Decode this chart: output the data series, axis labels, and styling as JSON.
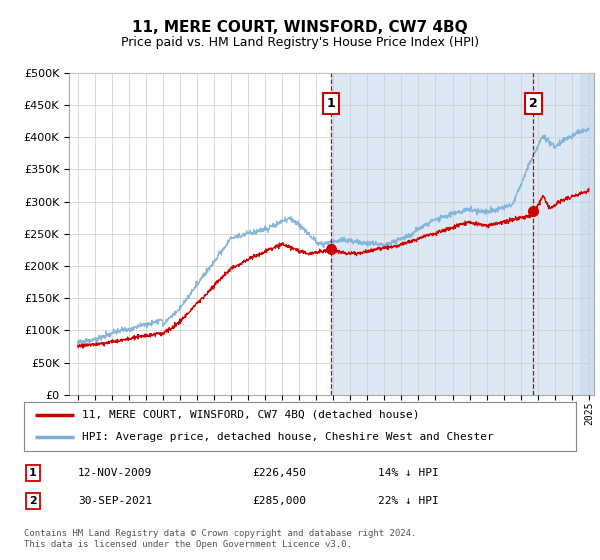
{
  "title": "11, MERE COURT, WINSFORD, CW7 4BQ",
  "subtitle": "Price paid vs. HM Land Registry's House Price Index (HPI)",
  "legend_line1": "11, MERE COURT, WINSFORD, CW7 4BQ (detached house)",
  "legend_line2": "HPI: Average price, detached house, Cheshire West and Chester",
  "annotation1_label": "1",
  "annotation1_date": "12-NOV-2009",
  "annotation1_price": "£226,450",
  "annotation1_hpi": "14% ↓ HPI",
  "annotation1_year": 2009.87,
  "annotation1_value": 226450,
  "annotation2_label": "2",
  "annotation2_date": "30-SEP-2021",
  "annotation2_price": "£285,000",
  "annotation2_hpi": "22% ↓ HPI",
  "annotation2_year": 2021.75,
  "annotation2_value": 285000,
  "copyright": "Contains HM Land Registry data © Crown copyright and database right 2024.\nThis data is licensed under the Open Government Licence v3.0.",
  "hpi_color": "#7bafd4",
  "price_color": "#cc0000",
  "annotation_color": "#cc0000",
  "plot_bg": "#ffffff",
  "ylim": [
    0,
    500000
  ],
  "xlim_start": 1994.5,
  "xlim_end": 2025.3,
  "shade_start": 2009.87,
  "shade_color": "#dce9f5",
  "hatch_start": 2024.5
}
